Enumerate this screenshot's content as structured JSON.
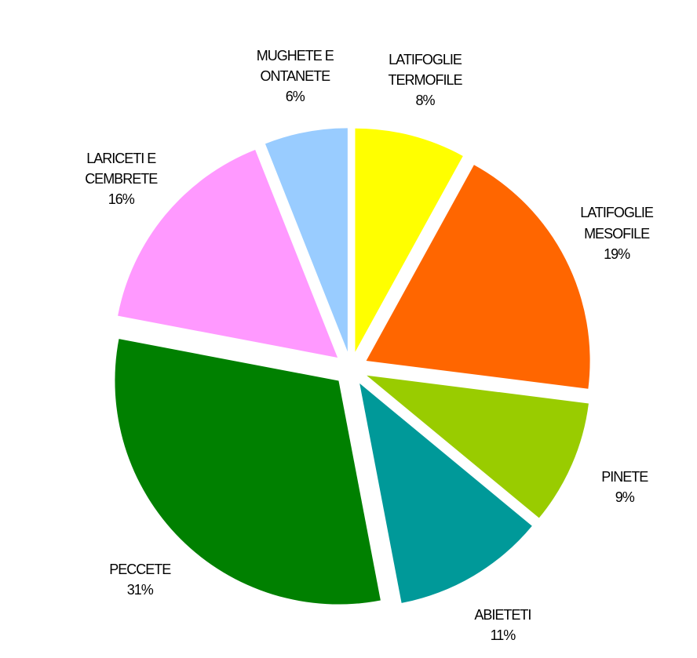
{
  "chart_data": {
    "type": "pie",
    "categories": [
      "LATIFOGLIE TERMOFILE",
      "LATIFOGLIE MESOFILE",
      "PINETE",
      "ABIETETI",
      "PECCETE",
      "LARICETI E CEMBRETE",
      "MUGHETE E ONTANETE"
    ],
    "values": [
      8,
      19,
      9,
      11,
      31,
      16,
      6
    ],
    "value_labels": [
      "8%",
      "19%",
      "9%",
      "11%",
      "31%",
      "16%",
      "6%"
    ],
    "colors": [
      "#ffff00",
      "#ff6600",
      "#99cc00",
      "#009999",
      "#008000",
      "#ff99ff",
      "#99ccff"
    ]
  }
}
